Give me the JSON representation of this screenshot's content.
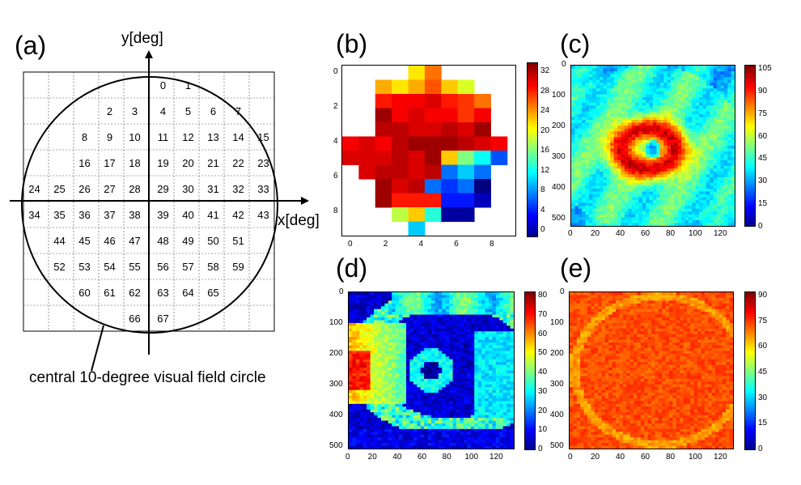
{
  "labels": {
    "a": "(a)",
    "b": "(b)",
    "c": "(c)",
    "d": "(d)",
    "e": "(e)"
  },
  "panel_a": {
    "y_axis_label": "y[deg]",
    "x_axis_label": "x[deg]",
    "caption": "central 10-degree visual field circle",
    "rows": [
      {
        "start": 5,
        "nums": [
          0,
          1
        ]
      },
      {
        "start": 3,
        "nums": [
          2,
          3,
          4,
          5,
          6,
          7
        ]
      },
      {
        "start": 2,
        "nums": [
          8,
          9,
          10,
          11,
          12,
          13,
          14,
          15
        ]
      },
      {
        "start": 2,
        "nums": [
          16,
          17,
          18,
          19,
          20,
          21,
          22,
          23
        ]
      },
      {
        "start": 0,
        "nums": [
          24,
          25,
          26,
          27,
          28,
          29,
          30,
          31,
          32,
          33
        ]
      },
      {
        "start": 0,
        "nums": [
          34,
          35,
          36,
          37,
          38,
          39,
          40,
          41,
          42,
          43
        ]
      },
      {
        "start": 1,
        "nums": [
          44,
          45,
          46,
          47,
          48,
          49,
          50,
          51
        ]
      },
      {
        "start": 1,
        "nums": [
          52,
          53,
          54,
          55,
          56,
          57,
          58,
          59
        ]
      },
      {
        "start": 2,
        "nums": [
          60,
          61,
          62,
          63,
          64,
          65
        ]
      },
      {
        "start": 4,
        "nums": [
          66,
          67
        ]
      }
    ]
  },
  "chart_data": [
    {
      "panel": "(b)",
      "type": "heatmap",
      "x_ticks": [
        "0",
        "2",
        "4",
        "6",
        "8"
      ],
      "y_ticks": [
        "0",
        "2",
        "4",
        "6",
        "8"
      ],
      "colorbar_ticks": [
        "0",
        "4",
        "8",
        "12",
        "16",
        "20",
        "24",
        "28",
        "32"
      ],
      "colorbar_range": [
        0,
        34
      ],
      "grid": [
        [
          null,
          null,
          null,
          null,
          22,
          26,
          null,
          null,
          null,
          null
        ],
        [
          null,
          null,
          24,
          22,
          24,
          27,
          23,
          20,
          null,
          null
        ],
        [
          null,
          null,
          29,
          30,
          30,
          31,
          29,
          28,
          26,
          null
        ],
        [
          null,
          null,
          33,
          30,
          31,
          30,
          30,
          28,
          30,
          null
        ],
        [
          null,
          null,
          32,
          32,
          31,
          31,
          32,
          31,
          33,
          null
        ],
        [
          30,
          31,
          30,
          32,
          33,
          33,
          33,
          32,
          31,
          30
        ],
        [
          31,
          31,
          31,
          32,
          31,
          33,
          23,
          17,
          13,
          7
        ],
        [
          null,
          31,
          32,
          32,
          31,
          32,
          8,
          11,
          8,
          null
        ],
        [
          null,
          null,
          33,
          31,
          32,
          8,
          6,
          8,
          0,
          null
        ],
        [
          null,
          null,
          33,
          29,
          29,
          29,
          5,
          5,
          2,
          null
        ],
        [
          null,
          null,
          null,
          19,
          23,
          14,
          1,
          1,
          null,
          null
        ],
        [
          null,
          null,
          null,
          null,
          11,
          null,
          null,
          null,
          null,
          null
        ]
      ]
    },
    {
      "panel": "(c)",
      "type": "heatmap",
      "x_ticks": [
        "0",
        "20",
        "40",
        "60",
        "80",
        "100",
        "120"
      ],
      "y_ticks": [
        "0",
        "100",
        "200",
        "300",
        "400",
        "500"
      ],
      "colorbar_ticks": [
        "0",
        "15",
        "30",
        "45",
        "60",
        "75",
        "90",
        "105"
      ],
      "colorbar_range": [
        0,
        112
      ]
    },
    {
      "panel": "(d)",
      "type": "heatmap",
      "x_ticks": [
        "0",
        "20",
        "40",
        "60",
        "80",
        "100",
        "120"
      ],
      "y_ticks": [
        "0",
        "100",
        "200",
        "300",
        "400",
        "500"
      ],
      "colorbar_ticks": [
        "0",
        "10",
        "20",
        "30",
        "40",
        "50",
        "60",
        "70",
        "80"
      ],
      "colorbar_range": [
        0,
        88
      ]
    },
    {
      "panel": "(e)",
      "type": "heatmap",
      "x_ticks": [
        "0",
        "20",
        "40",
        "60",
        "80",
        "100",
        "120"
      ],
      "y_ticks": [
        "0",
        "100",
        "200",
        "300",
        "400",
        "500"
      ],
      "colorbar_ticks": [
        "0",
        "15",
        "30",
        "45",
        "60",
        "75",
        "90"
      ],
      "colorbar_range": [
        0,
        100
      ]
    }
  ]
}
